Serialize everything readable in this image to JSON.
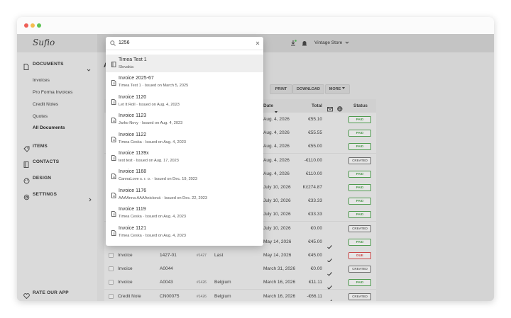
{
  "sidebar": {
    "logo": "Sufio",
    "documents": "DOCUMENTS",
    "doc_links": [
      "Invoices",
      "Pro Forma Invoices",
      "Credit Notes",
      "Quotes",
      "All Documents"
    ],
    "items": [
      "ITEMS",
      "CONTACTS",
      "DESIGN",
      "SETTINGS"
    ],
    "rate": "RATE OUR APP"
  },
  "header": {
    "store": "Vintage Store"
  },
  "page": {
    "title_initial": "A"
  },
  "toolbar": {
    "buttons": [
      "PRINT",
      "DOWNLOAD",
      "MORE"
    ]
  },
  "table": {
    "columns": {
      "date": "Date",
      "total": "Total",
      "status": "Status"
    },
    "rows": [
      {
        "date": "Aug. 4, 2026",
        "total": "€55.10",
        "status": "PAID",
        "status_color": "#4f9a4f"
      },
      {
        "date": "Aug. 4, 2026",
        "total": "€55.55",
        "status": "PAID",
        "status_color": "#4f9a4f"
      },
      {
        "date": "Aug. 4, 2026",
        "total": "€55.00",
        "status": "PAID",
        "status_color": "#4f9a4f"
      },
      {
        "date": "Aug. 4, 2026",
        "total": "-€110.00",
        "status": "CREATED",
        "status_color": "#6f6f6f"
      },
      {
        "date": "Aug. 4, 2026",
        "total": "€110.00",
        "status": "PAID",
        "status_color": "#4f9a4f"
      },
      {
        "date": "July 10, 2026",
        "total": "Kč274.87",
        "status": "PAID",
        "status_color": "#4f9a4f"
      },
      {
        "date": "July 10, 2026",
        "total": "€33.33",
        "status": "PAID",
        "status_color": "#4f9a4f"
      },
      {
        "date": "July 10, 2026",
        "total": "€33.33",
        "status": "PAID",
        "status_color": "#4f9a4f"
      },
      {
        "date": "July 10, 2026",
        "total": "€0.00",
        "status": "CREATED",
        "status_color": "#6f6f6f"
      },
      {
        "date": "May 14, 2026",
        "total": "€45.00",
        "sent": true,
        "status": "PAID",
        "status_color": "#4f9a4f"
      },
      {
        "type": "Invoice",
        "number": "1427-01",
        "order": "#1427",
        "customer": "Last",
        "date": "May 14, 2026",
        "total": "€45.00",
        "sent": true,
        "status": "DUE",
        "status_color": "#c94a4a"
      },
      {
        "type": "Invoice",
        "number": "A0044",
        "date": "March 31, 2026",
        "total": "€0.00",
        "sent": true,
        "status": "CREATED",
        "status_color": "#6f6f6f"
      },
      {
        "type": "Invoice",
        "number": "A0043",
        "order": "#1426",
        "customer": "Belgium",
        "date": "March 16, 2026",
        "total": "€11.11",
        "sent": true,
        "status": "PAID",
        "status_color": "#4f9a4f"
      },
      {
        "type": "Credit Note",
        "number": "CN00075",
        "order": "#1426",
        "customer": "Belgium",
        "date": "March 16, 2026",
        "total": "-€66.11",
        "sent": true,
        "status": "CREATED",
        "status_color": "#6f6f6f"
      }
    ]
  },
  "search": {
    "query": "1256",
    "results": [
      {
        "icon": "contact",
        "title": "Timea Test 1",
        "subtitle": "Slovakia"
      },
      {
        "icon": "document",
        "title": "Invoice 2025-67",
        "subtitle": "Timea Test 1 · Issued on March 5, 2025"
      },
      {
        "icon": "document",
        "title": "Invoice 1120",
        "subtitle": "Let It Roll · Issued on Aug. 4, 2023"
      },
      {
        "icon": "document",
        "title": "Invoice 1123",
        "subtitle": "Jarko Novy · Issued on Aug. 4, 2023"
      },
      {
        "icon": "document",
        "title": "Invoice 1122",
        "subtitle": "Timea Ceska · Issued on Aug. 4, 2023"
      },
      {
        "icon": "document",
        "title": "Invoice 1139x",
        "subtitle": "test test · Issued on Aug. 17, 2023"
      },
      {
        "icon": "document",
        "title": "Invoice 1168",
        "subtitle": "CannaLove s. r. o. · Issued on Dec. 19, 2023"
      },
      {
        "icon": "document",
        "title": "Invoice 1176",
        "subtitle": "AAAAnna AAAAnicková · Issued on Dec. 22, 2023"
      },
      {
        "icon": "document",
        "title": "Invoice 1119",
        "subtitle": "Timea Ceska · Issued on Aug. 4, 2023"
      },
      {
        "icon": "document",
        "title": "Invoice 1121",
        "subtitle": "Timea Ceska · Issued on Aug. 4, 2023"
      }
    ]
  }
}
